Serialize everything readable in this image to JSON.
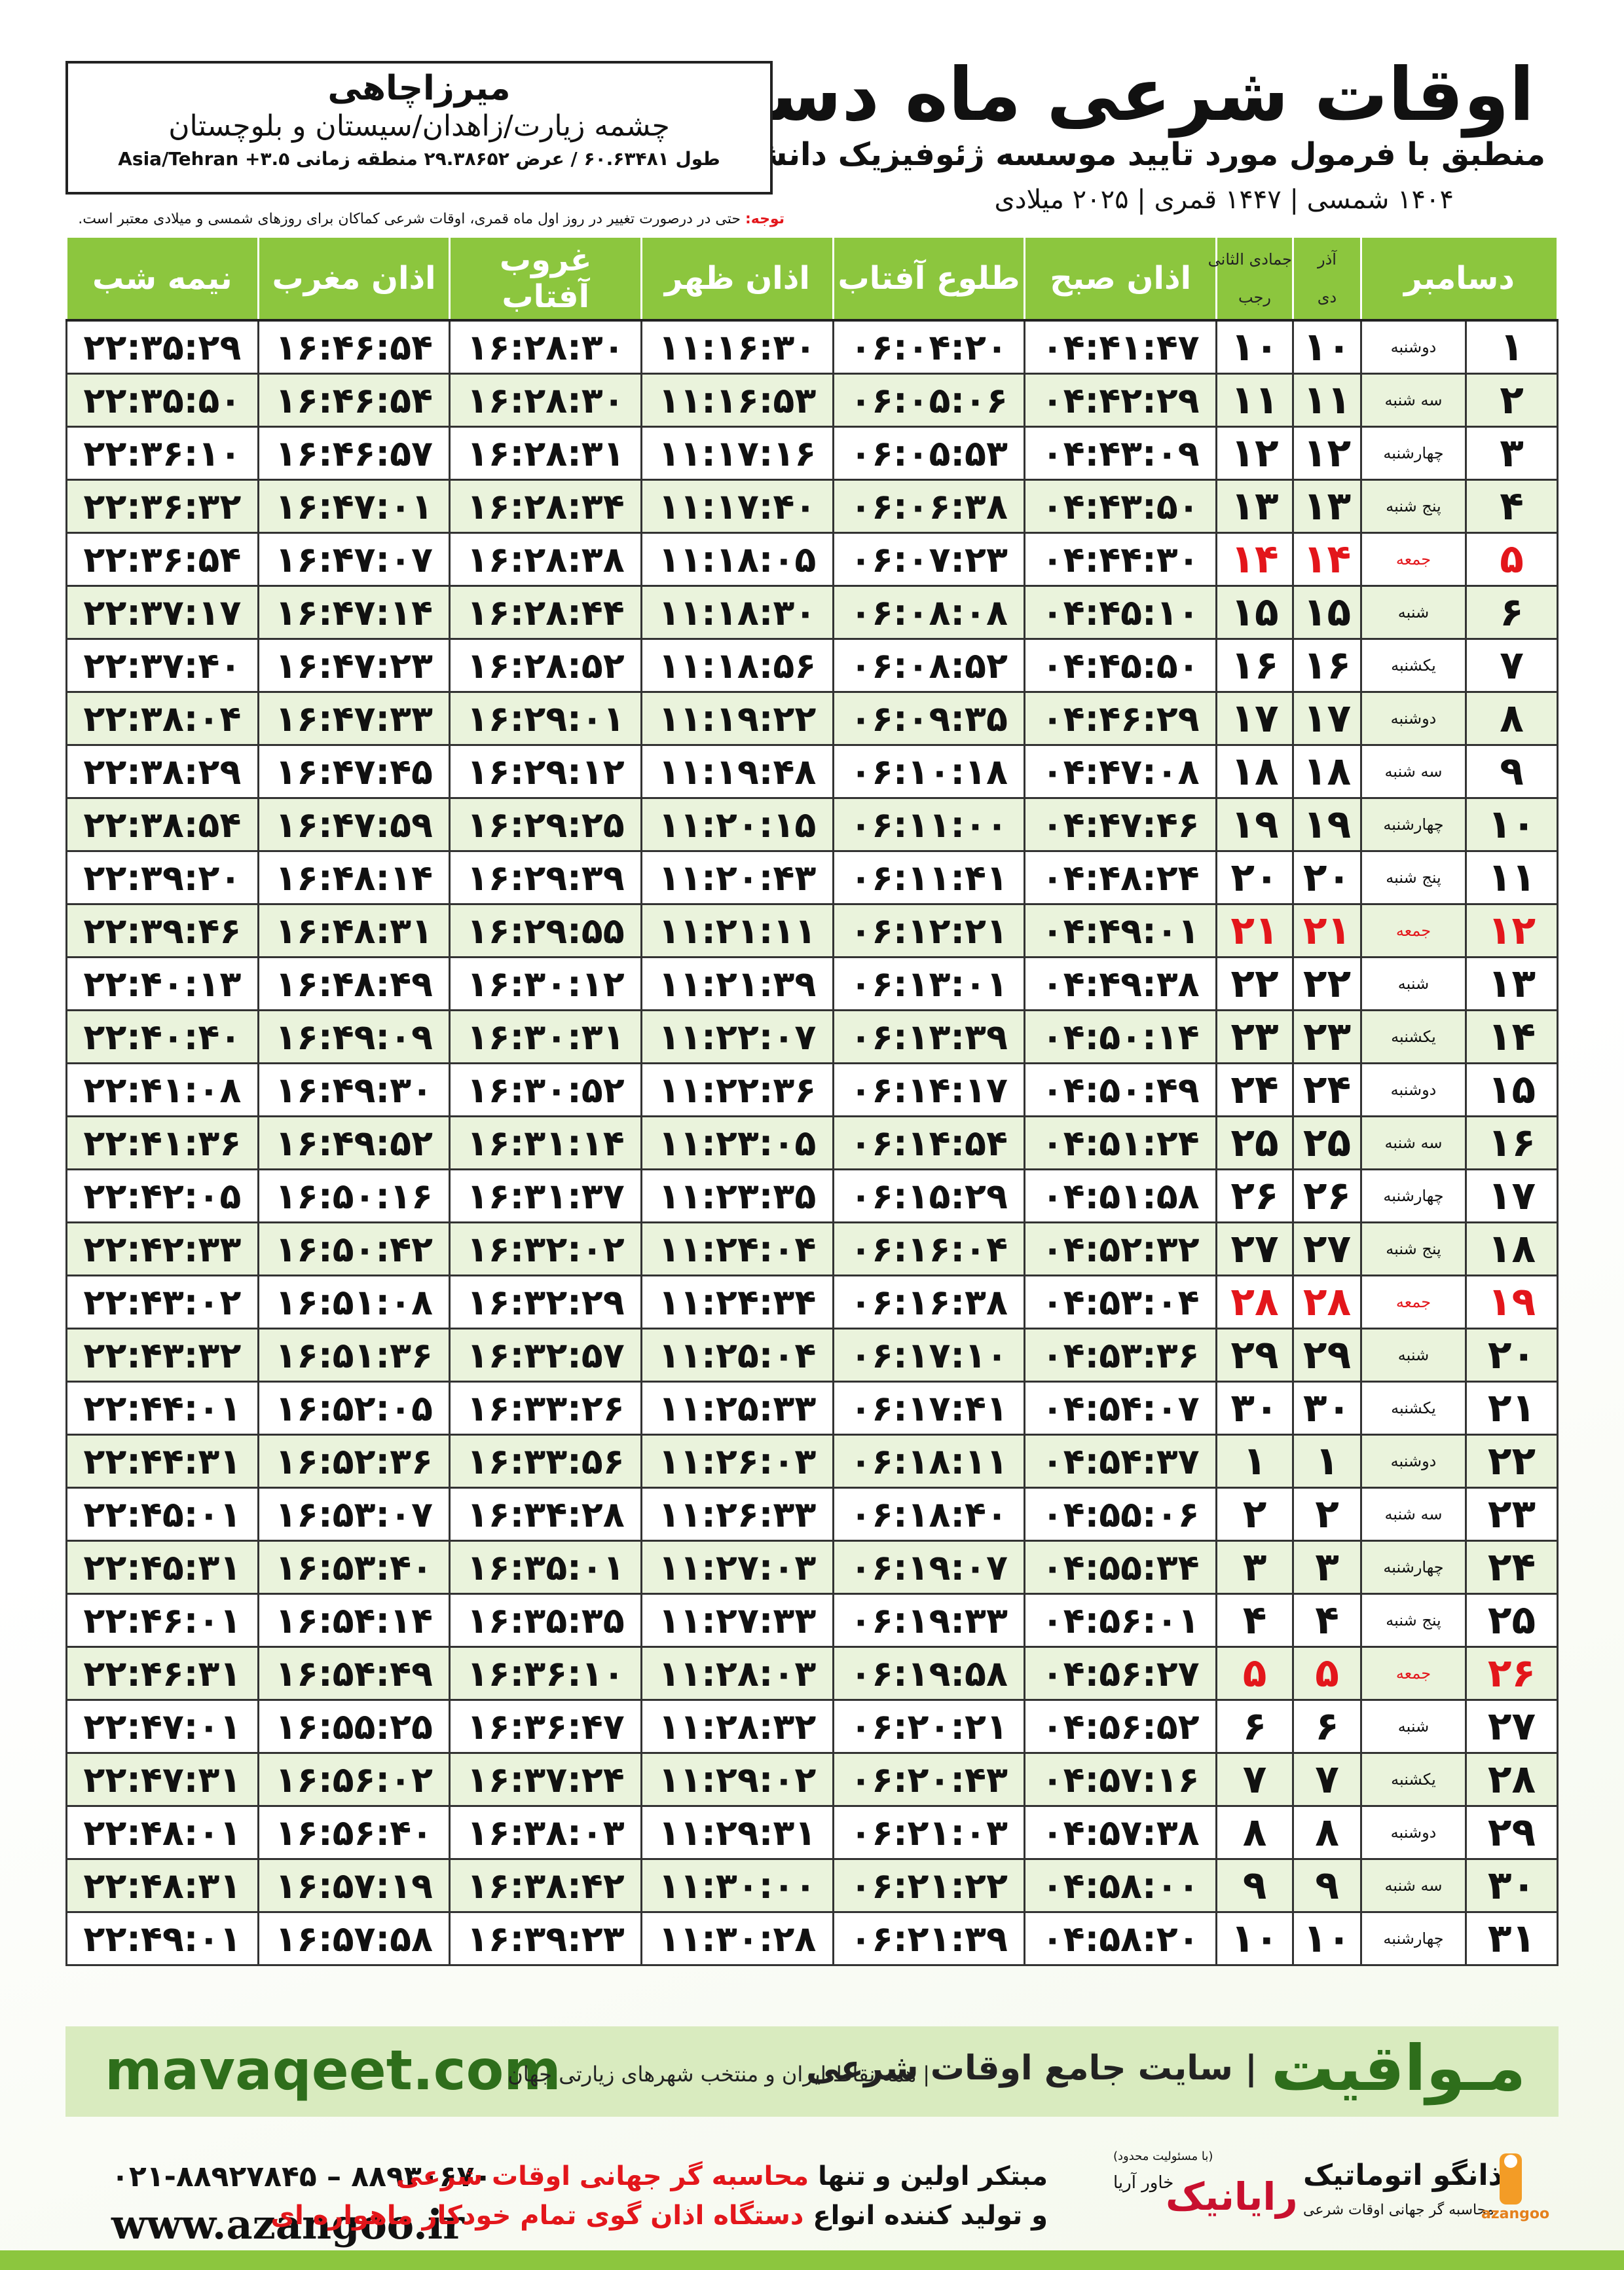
{
  "header": {
    "title": "اوقات شرعی ماه دسامبر",
    "subtitle": "منطبق با فرمول مورد تایید موسسه ژئوفیزیک دانشگاه تهران",
    "years": "۱۴۰۴ شمسی | ۱۴۴۷ قمری | ۲۰۲۵ میلادی"
  },
  "location": {
    "name": "میرزاچاهی",
    "address": "چشمه زیارت/زاهدان/سیستان و بلوچستان",
    "coordinates": "طول ۶۰.۶۳۴۸۱ / عرض ۲۹.۳۸۶۵۲ منطقه زمانی ۳.۵+ Asia/Tehran"
  },
  "note": {
    "label": "توجه:",
    "text": " حتی در درصورت تغییر در روز اول ماه قمری، اوقات شرعی کماکان برای روزهای شمسی و میلادی معتبر است."
  },
  "table": {
    "header": {
      "day": "دسامبر",
      "solar_months": [
        "آذر",
        "دی"
      ],
      "lunar_months": [
        "جمادی الثانی",
        "رجب"
      ],
      "times": [
        "اذان صبح",
        "طلوع آفتاب",
        "اذان ظهر",
        "غروب آفتاب",
        "اذان مغرب",
        "نیمه شب"
      ]
    },
    "rows": [
      {
        "cells": [
          "۱",
          "دوشنبه",
          "۱۰",
          "۱۰",
          "۰۴:۴۱:۴۷",
          "۰۶:۰۴:۲۰",
          "۱۱:۱۶:۳۰",
          "۱۶:۲۸:۳۰",
          "۱۶:۴۶:۵۴",
          "۲۲:۳۵:۲۹"
        ]
      },
      {
        "cells": [
          "۲",
          "سه شنبه",
          "۱۱",
          "۱۱",
          "۰۴:۴۲:۲۹",
          "۰۶:۰۵:۰۶",
          "۱۱:۱۶:۵۳",
          "۱۶:۲۸:۳۰",
          "۱۶:۴۶:۵۴",
          "۲۲:۳۵:۵۰"
        ]
      },
      {
        "cells": [
          "۳",
          "چهارشنبه",
          "۱۲",
          "۱۲",
          "۰۴:۴۳:۰۹",
          "۰۶:۰۵:۵۳",
          "۱۱:۱۷:۱۶",
          "۱۶:۲۸:۳۱",
          "۱۶:۴۶:۵۷",
          "۲۲:۳۶:۱۰"
        ]
      },
      {
        "cells": [
          "۴",
          "پنج شنبه",
          "۱۳",
          "۱۳",
          "۰۴:۴۳:۵۰",
          "۰۶:۰۶:۳۸",
          "۱۱:۱۷:۴۰",
          "۱۶:۲۸:۳۴",
          "۱۶:۴۷:۰۱",
          "۲۲:۳۶:۳۲"
        ]
      },
      {
        "cells": [
          "۵",
          "جمعه",
          "۱۴",
          "۱۴",
          "۰۴:۴۴:۳۰",
          "۰۶:۰۷:۲۳",
          "۱۱:۱۸:۰۵",
          "۱۶:۲۸:۳۸",
          "۱۶:۴۷:۰۷",
          "۲۲:۳۶:۵۴"
        ],
        "color": "#e3161b"
      },
      {
        "cells": [
          "۶",
          "شنبه",
          "۱۵",
          "۱۵",
          "۰۴:۴۵:۱۰",
          "۰۶:۰۸:۰۸",
          "۱۱:۱۸:۳۰",
          "۱۶:۲۸:۴۴",
          "۱۶:۴۷:۱۴",
          "۲۲:۳۷:۱۷"
        ]
      },
      {
        "cells": [
          "۷",
          "یکشنبه",
          "۱۶",
          "۱۶",
          "۰۴:۴۵:۵۰",
          "۰۶:۰۸:۵۲",
          "۱۱:۱۸:۵۶",
          "۱۶:۲۸:۵۲",
          "۱۶:۴۷:۲۳",
          "۲۲:۳۷:۴۰"
        ]
      },
      {
        "cells": [
          "۸",
          "دوشنبه",
          "۱۷",
          "۱۷",
          "۰۴:۴۶:۲۹",
          "۰۶:۰۹:۳۵",
          "۱۱:۱۹:۲۲",
          "۱۶:۲۹:۰۱",
          "۱۶:۴۷:۳۳",
          "۲۲:۳۸:۰۴"
        ]
      },
      {
        "cells": [
          "۹",
          "سه شنبه",
          "۱۸",
          "۱۸",
          "۰۴:۴۷:۰۸",
          "۰۶:۱۰:۱۸",
          "۱۱:۱۹:۴۸",
          "۱۶:۲۹:۱۲",
          "۱۶:۴۷:۴۵",
          "۲۲:۳۸:۲۹"
        ]
      },
      {
        "cells": [
          "۱۰",
          "چهارشنبه",
          "۱۹",
          "۱۹",
          "۰۴:۴۷:۴۶",
          "۰۶:۱۱:۰۰",
          "۱۱:۲۰:۱۵",
          "۱۶:۲۹:۲۵",
          "۱۶:۴۷:۵۹",
          "۲۲:۳۸:۵۴"
        ]
      },
      {
        "cells": [
          "۱۱",
          "پنج شنبه",
          "۲۰",
          "۲۰",
          "۰۴:۴۸:۲۴",
          "۰۶:۱۱:۴۱",
          "۱۱:۲۰:۴۳",
          "۱۶:۲۹:۳۹",
          "۱۶:۴۸:۱۴",
          "۲۲:۳۹:۲۰"
        ]
      },
      {
        "cells": [
          "۱۲",
          "جمعه",
          "۲۱",
          "۲۱",
          "۰۴:۴۹:۰۱",
          "۰۶:۱۲:۲۱",
          "۱۱:۲۱:۱۱",
          "۱۶:۲۹:۵۵",
          "۱۶:۴۸:۳۱",
          "۲۲:۳۹:۴۶"
        ],
        "color": "#e3161b"
      },
      {
        "cells": [
          "۱۳",
          "شنبه",
          "۲۲",
          "۲۲",
          "۰۴:۴۹:۳۸",
          "۰۶:۱۳:۰۱",
          "۱۱:۲۱:۳۹",
          "۱۶:۳۰:۱۲",
          "۱۶:۴۸:۴۹",
          "۲۲:۴۰:۱۳"
        ]
      },
      {
        "cells": [
          "۱۴",
          "یکشنبه",
          "۲۳",
          "۲۳",
          "۰۴:۵۰:۱۴",
          "۰۶:۱۳:۳۹",
          "۱۱:۲۲:۰۷",
          "۱۶:۳۰:۳۱",
          "۱۶:۴۹:۰۹",
          "۲۲:۴۰:۴۰"
        ]
      },
      {
        "cells": [
          "۱۵",
          "دوشنبه",
          "۲۴",
          "۲۴",
          "۰۴:۵۰:۴۹",
          "۰۶:۱۴:۱۷",
          "۱۱:۲۲:۳۶",
          "۱۶:۳۰:۵۲",
          "۱۶:۴۹:۳۰",
          "۲۲:۴۱:۰۸"
        ]
      },
      {
        "cells": [
          "۱۶",
          "سه شنبه",
          "۲۵",
          "۲۵",
          "۰۴:۵۱:۲۴",
          "۰۶:۱۴:۵۴",
          "۱۱:۲۳:۰۵",
          "۱۶:۳۱:۱۴",
          "۱۶:۴۹:۵۲",
          "۲۲:۴۱:۳۶"
        ]
      },
      {
        "cells": [
          "۱۷",
          "چهارشنبه",
          "۲۶",
          "۲۶",
          "۰۴:۵۱:۵۸",
          "۰۶:۱۵:۲۹",
          "۱۱:۲۳:۳۵",
          "۱۶:۳۱:۳۷",
          "۱۶:۵۰:۱۶",
          "۲۲:۴۲:۰۵"
        ]
      },
      {
        "cells": [
          "۱۸",
          "پنج شنبه",
          "۲۷",
          "۲۷",
          "۰۴:۵۲:۳۲",
          "۰۶:۱۶:۰۴",
          "۱۱:۲۴:۰۴",
          "۱۶:۳۲:۰۲",
          "۱۶:۵۰:۴۲",
          "۲۲:۴۲:۳۳"
        ]
      },
      {
        "cells": [
          "۱۹",
          "جمعه",
          "۲۸",
          "۲۸",
          "۰۴:۵۳:۰۴",
          "۰۶:۱۶:۳۸",
          "۱۱:۲۴:۳۴",
          "۱۶:۳۲:۲۹",
          "۱۶:۵۱:۰۸",
          "۲۲:۴۳:۰۲"
        ],
        "color": "#e3161b"
      },
      {
        "cells": [
          "۲۰",
          "شنبه",
          "۲۹",
          "۲۹",
          "۰۴:۵۳:۳۶",
          "۰۶:۱۷:۱۰",
          "۱۱:۲۵:۰۴",
          "۱۶:۳۲:۵۷",
          "۱۶:۵۱:۳۶",
          "۲۲:۴۳:۳۲"
        ]
      },
      {
        "cells": [
          "۲۱",
          "یکشنبه",
          "۳۰",
          "۳۰",
          "۰۴:۵۴:۰۷",
          "۰۶:۱۷:۴۱",
          "۱۱:۲۵:۳۳",
          "۱۶:۳۳:۲۶",
          "۱۶:۵۲:۰۵",
          "۲۲:۴۴:۰۱"
        ]
      },
      {
        "cells": [
          "۲۲",
          "دوشنبه",
          "۱",
          "۱",
          "۰۴:۵۴:۳۷",
          "۰۶:۱۸:۱۱",
          "۱۱:۲۶:۰۳",
          "۱۶:۳۳:۵۶",
          "۱۶:۵۲:۳۶",
          "۲۲:۴۴:۳۱"
        ]
      },
      {
        "cells": [
          "۲۳",
          "سه شنبه",
          "۲",
          "۲",
          "۰۴:۵۵:۰۶",
          "۰۶:۱۸:۴۰",
          "۱۱:۲۶:۳۳",
          "۱۶:۳۴:۲۸",
          "۱۶:۵۳:۰۷",
          "۲۲:۴۵:۰۱"
        ]
      },
      {
        "cells": [
          "۲۴",
          "چهارشنبه",
          "۳",
          "۳",
          "۰۴:۵۵:۳۴",
          "۰۶:۱۹:۰۷",
          "۱۱:۲۷:۰۳",
          "۱۶:۳۵:۰۱",
          "۱۶:۵۳:۴۰",
          "۲۲:۴۵:۳۱"
        ]
      },
      {
        "cells": [
          "۲۵",
          "پنج شنبه",
          "۴",
          "۴",
          "۰۴:۵۶:۰۱",
          "۰۶:۱۹:۳۳",
          "۱۱:۲۷:۳۳",
          "۱۶:۳۵:۳۵",
          "۱۶:۵۴:۱۴",
          "۲۲:۴۶:۰۱"
        ]
      },
      {
        "cells": [
          "۲۶",
          "جمعه",
          "۵",
          "۵",
          "۰۴:۵۶:۲۷",
          "۰۶:۱۹:۵۸",
          "۱۱:۲۸:۰۳",
          "۱۶:۳۶:۱۰",
          "۱۶:۵۴:۴۹",
          "۲۲:۴۶:۳۱"
        ],
        "color": "#e3161b"
      },
      {
        "cells": [
          "۲۷",
          "شنبه",
          "۶",
          "۶",
          "۰۴:۵۶:۵۲",
          "۰۶:۲۰:۲۱",
          "۱۱:۲۸:۳۲",
          "۱۶:۳۶:۴۷",
          "۱۶:۵۵:۲۵",
          "۲۲:۴۷:۰۱"
        ]
      },
      {
        "cells": [
          "۲۸",
          "یکشنبه",
          "۷",
          "۷",
          "۰۴:۵۷:۱۶",
          "۰۶:۲۰:۴۳",
          "۱۱:۲۹:۰۲",
          "۱۶:۳۷:۲۴",
          "۱۶:۵۶:۰۲",
          "۲۲:۴۷:۳۱"
        ]
      },
      {
        "cells": [
          "۲۹",
          "دوشنبه",
          "۸",
          "۸",
          "۰۴:۵۷:۳۸",
          "۰۶:۲۱:۰۳",
          "۱۱:۲۹:۳۱",
          "۱۶:۳۸:۰۳",
          "۱۶:۵۶:۴۰",
          "۲۲:۴۸:۰۱"
        ]
      },
      {
        "cells": [
          "۳۰",
          "سه شنبه",
          "۹",
          "۹",
          "۰۴:۵۸:۰۰",
          "۰۶:۲۱:۲۲",
          "۱۱:۳۰:۰۰",
          "۱۶:۳۸:۴۲",
          "۱۶:۵۷:۱۹",
          "۲۲:۴۸:۳۱"
        ]
      },
      {
        "cells": [
          "۳۱",
          "چهارشنبه",
          "۱۰",
          "۱۰",
          "۰۴:۵۸:۲۰",
          "۰۶:۲۱:۳۹",
          "۱۱:۳۰:۲۸",
          "۱۶:۳۹:۲۳",
          "۱۶:۵۷:۵۸",
          "۲۲:۴۹:۰۱"
        ]
      }
    ]
  },
  "banner": {
    "site": "mavaqeet.com",
    "brand": "مـواقیت",
    "slogan": "| سایت جامع اوقات شرعی",
    "scope": "| همه نقاط ایران و منتخب شهرهای زیارتی جهان"
  },
  "footer": {
    "phone": "۰۲۱-۸۸۹۲۷۸۴۵ – ۸۸۹۳۰۶۷۰",
    "website": "www.azangoo.ir",
    "line1": [
      "مبتکر اولین و تنها ",
      "محاسبه گر جهانی اوقات شرعی"
    ],
    "line2": [
      "و تولید کننده انواع ",
      "دستگاه اذان گوی تمام خودکار ماهواره ای"
    ],
    "rayanik": "رایانیک",
    "khavar": "خاور آریا",
    "llc": "(با مسئولیت محدود)",
    "azangoo_fa": "اذانگو اتوماتیک",
    "azangoo_sub": "محاسبه گر جهانی اوقات شرعی",
    "azangoo_en": "azangoo"
  }
}
